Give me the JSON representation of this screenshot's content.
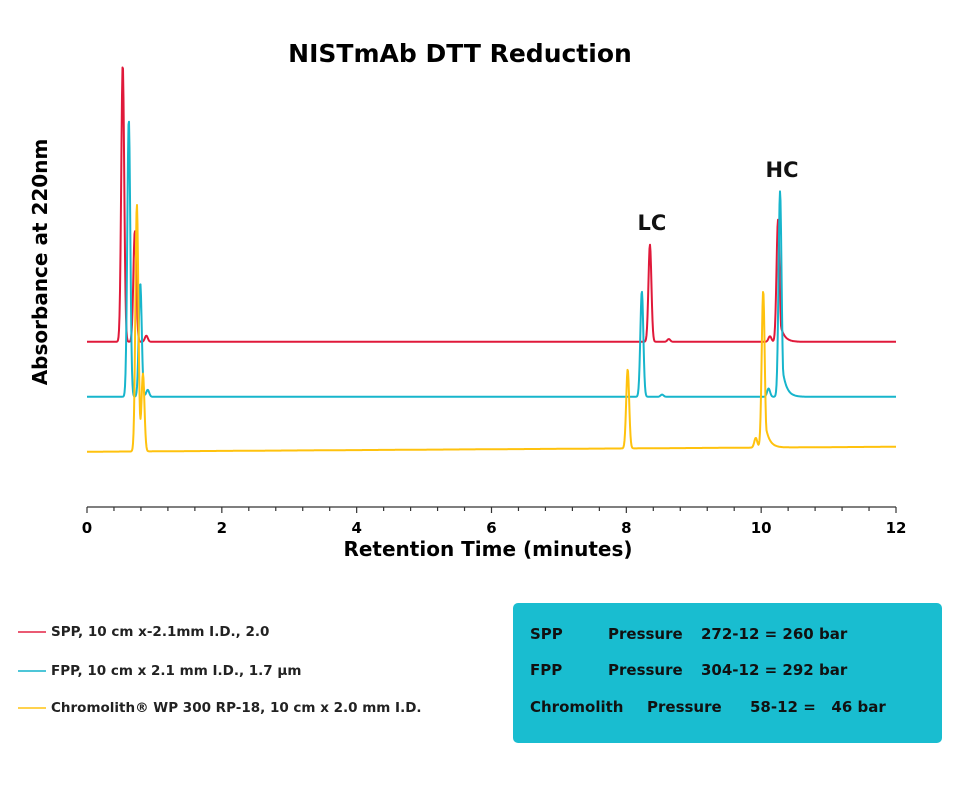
{
  "chart_data": {
    "type": "line",
    "title": "NISTmAb DTT Reduction",
    "xlabel": "Retention Time (minutes)",
    "ylabel": "Absorbance at 220nm",
    "xlim": [
      0,
      12
    ],
    "x_ticks": [
      "0",
      "2",
      "4",
      "6",
      "8",
      "10",
      "12"
    ],
    "x_minor_tick_step": 0.4,
    "y_units": "relative absorbance (no scale shown, traces offset vertically)",
    "ylim": [
      0,
      1.61
    ],
    "grid": false,
    "legend_position": "bottom-left",
    "annotations": [
      {
        "text": "LC",
        "x": 8.35
      },
      {
        "text": "HC",
        "x": 10.28
      }
    ],
    "series": [
      {
        "name": "SPP, 10 cm x-2.1mm I.D., 2.0",
        "color": "#e0193a",
        "baseline": [
          0.595,
          0.595
        ],
        "peaks": [
          {
            "rt": 0.53,
            "height": 1.0
          },
          {
            "rt": 0.71,
            "height": 0.4
          },
          {
            "rt": 0.88,
            "height": 0.022
          },
          {
            "rt": 8.35,
            "height": 0.35
          },
          {
            "rt": 8.63,
            "height": 0.01
          },
          {
            "rt": 10.13,
            "height": 0.02
          },
          {
            "rt": 10.25,
            "height": 0.44,
            "tail": true
          }
        ]
      },
      {
        "name": "FPP, 10 cm x 2.1 mm I.D., 1.7 µm",
        "color": "#17b5cc",
        "baseline": [
          0.397,
          0.397
        ],
        "peaks": [
          {
            "rt": 0.62,
            "height": 1.0
          },
          {
            "rt": 0.79,
            "height": 0.41
          },
          {
            "rt": 0.9,
            "height": 0.025
          },
          {
            "rt": 8.23,
            "height": 0.38
          },
          {
            "rt": 8.53,
            "height": 0.008
          },
          {
            "rt": 10.11,
            "height": 0.03
          },
          {
            "rt": 10.28,
            "height": 0.74,
            "tail": true
          }
        ]
      },
      {
        "name": "Chromolith® WP 300 RP-18, 10 cm x 2.0 mm I.D.",
        "color": "#ffc20e",
        "baseline": [
          0.199,
          0.217
        ],
        "peaks": [
          {
            "rt": 0.74,
            "height": 0.89
          },
          {
            "rt": 0.83,
            "height": 0.28
          },
          {
            "rt": 8.02,
            "height": 0.285
          },
          {
            "rt": 9.92,
            "height": 0.035
          },
          {
            "rt": 10.03,
            "height": 0.565,
            "tail": true
          }
        ]
      }
    ]
  },
  "info_box": {
    "background": "#19bdd0",
    "rows": [
      {
        "column": "SPP",
        "label": "Pressure",
        "value": "272-12 = 260 bar"
      },
      {
        "column": "FPP",
        "label": "Pressure",
        "value": "304-12 = 292 bar"
      },
      {
        "column": "Chromolith",
        "label": "Pressure",
        "value": "58-12 =   46 bar"
      }
    ]
  }
}
